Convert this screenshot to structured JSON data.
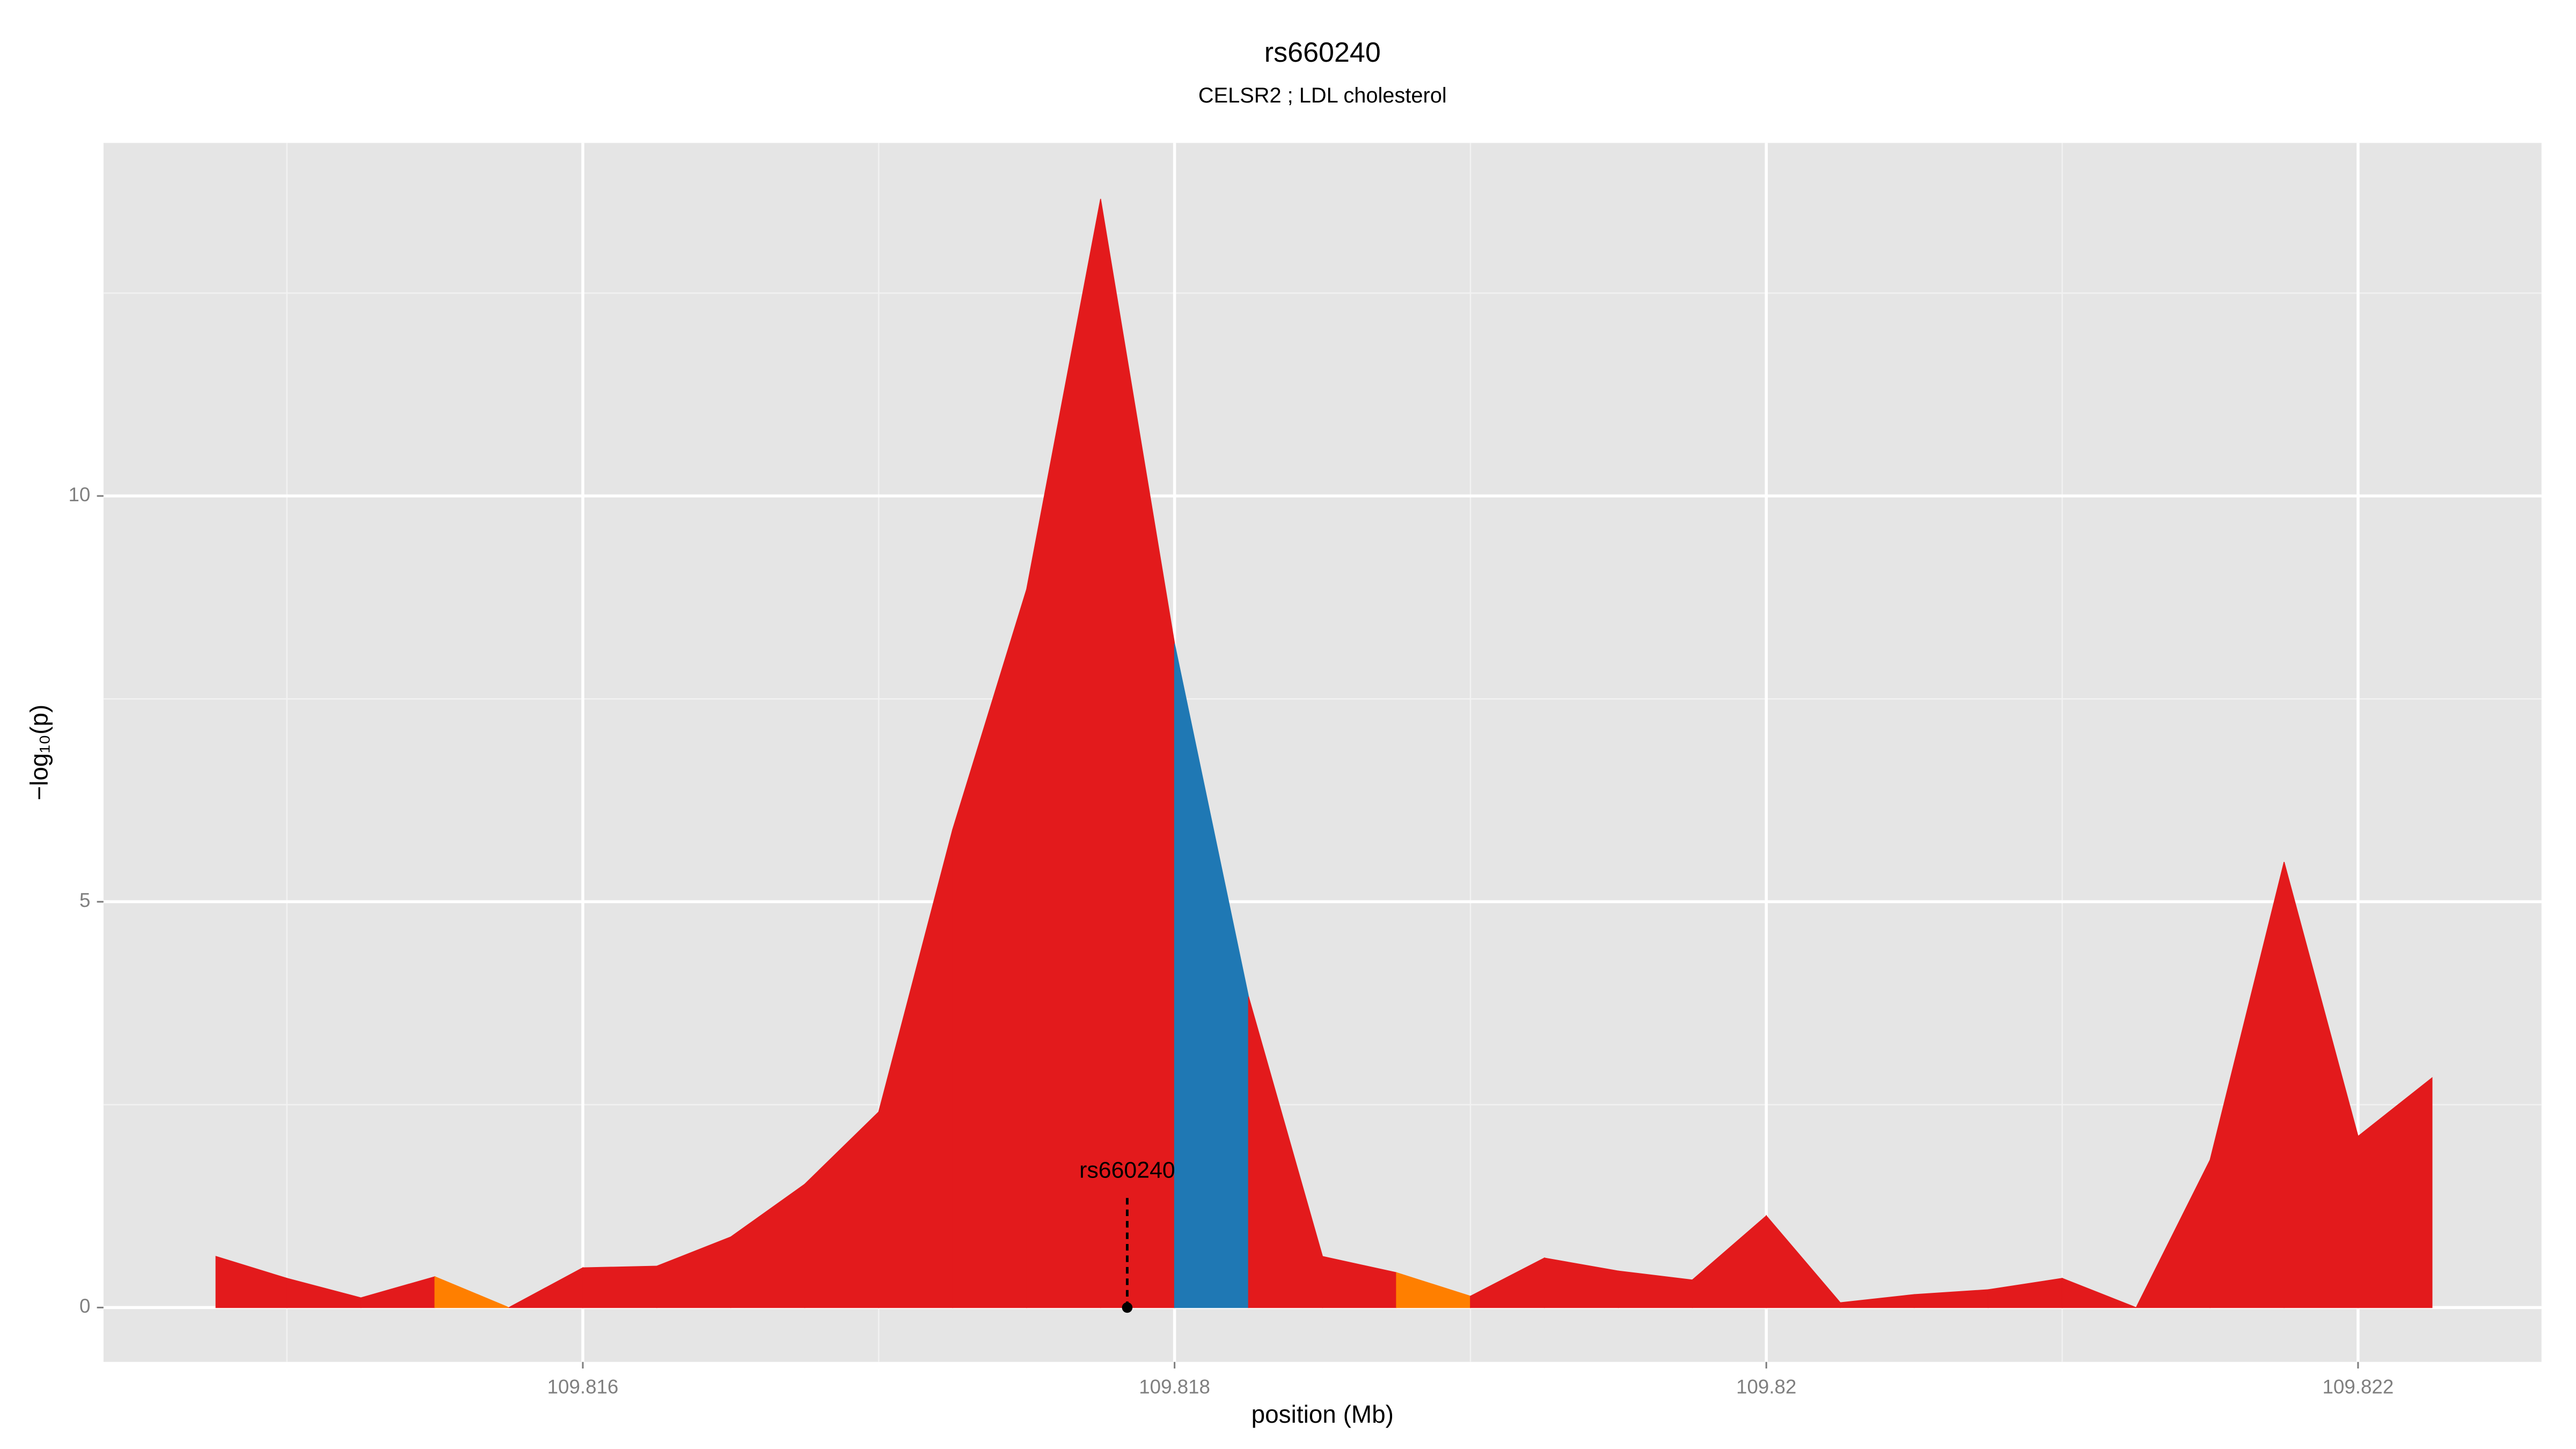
{
  "chart_data": {
    "type": "area",
    "title": "rs660240",
    "subtitle": "CELSR2 ; LDL cholesterol",
    "x_label": "position (Mb)",
    "y_label": "−log₁₀(p)",
    "x": [
      109.81476,
      109.815,
      109.81525,
      109.8155,
      109.81575,
      109.816,
      109.81625,
      109.8165,
      109.81675,
      109.817,
      109.81725,
      109.8175,
      109.81775,
      109.818,
      109.81825,
      109.8185,
      109.81875,
      109.819,
      109.81925,
      109.8195,
      109.81975,
      109.82,
      109.82025,
      109.8205,
      109.82075,
      109.821,
      109.82125,
      109.8215,
      109.82175,
      109.822,
      109.82225
    ],
    "values": [
      0.63,
      0.36,
      0.12,
      0.38,
      0,
      0.49,
      0.51,
      0.87,
      1.52,
      2.41,
      5.89,
      8.85,
      13.66,
      8.18,
      3.83,
      0.63,
      0.43,
      0.14,
      0.61,
      0.45,
      0.34,
      1.13,
      0.06,
      0.16,
      0.22,
      0.36,
      0,
      1.82,
      5.49,
      2.11,
      2.83
    ],
    "segment_colors": [
      "#e31a1c",
      "#e31a1c",
      "#e31a1c",
      "#ff7f00",
      "#e31a1c",
      "#e31a1c",
      "#e31a1c",
      "#e31a1c",
      "#e31a1c",
      "#e31a1c",
      "#e31a1c",
      "#e31a1c",
      "#e31a1c",
      "#1f78b4",
      "#e31a1c",
      "#e31a1c",
      "#ff7f00",
      "#e31a1c",
      "#e31a1c",
      "#e31a1c",
      "#e31a1c",
      "#e31a1c",
      "#e31a1c",
      "#e31a1c",
      "#e31a1c",
      "#e31a1c",
      "#e31a1c",
      "#e31a1c",
      "#e31a1c",
      "#e31a1c"
    ],
    "xlim": [
      109.81438,
      109.82262
    ],
    "ylim": [
      -0.67,
      14.35
    ],
    "xticks": [
      109.816,
      109.818,
      109.82,
      109.822
    ],
    "yticks": [
      0,
      5,
      10
    ],
    "x_minor_ticks": [
      109.815,
      109.817,
      109.819,
      109.821
    ],
    "y_minor_ticks": [
      2.5,
      7.5,
      12.5
    ],
    "grid": true,
    "annotation": {
      "text": "rs660240",
      "x": 109.81784,
      "y": 0,
      "label_y": 1.35
    }
  }
}
